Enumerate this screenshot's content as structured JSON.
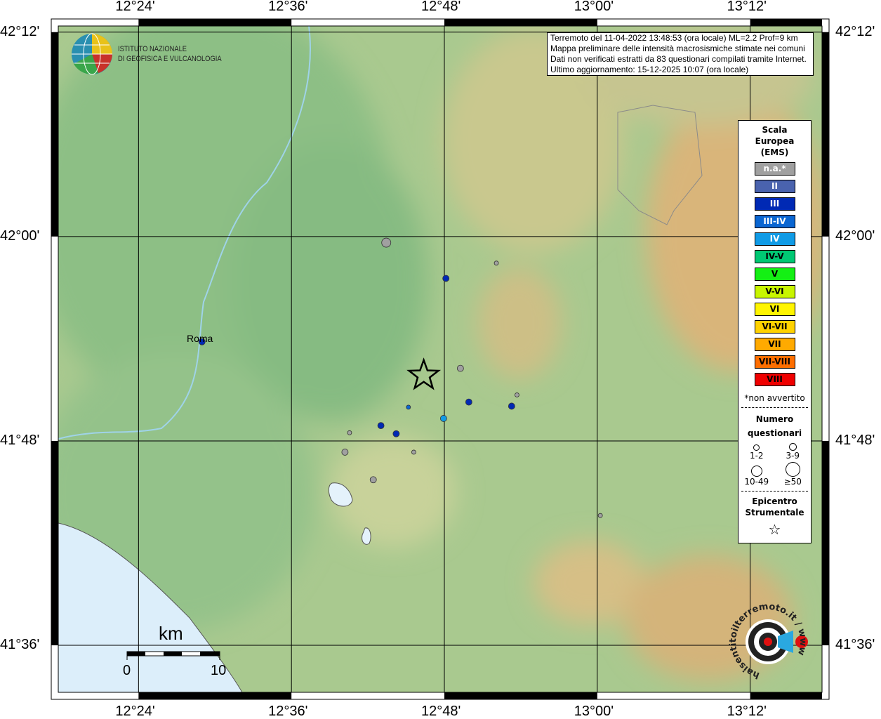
{
  "map": {
    "lon_range": [
      12.295,
      13.294
    ],
    "lat_range": [
      41.554,
      42.206
    ],
    "lon_ticks": [
      "12°24'",
      "12°36'",
      "12°48'",
      "13°00'",
      "13°12'"
    ],
    "lat_ticks": [
      "42°12'",
      "42°00'",
      "41°48'",
      "41°36'"
    ],
    "city_label": "Roma",
    "colors": {
      "terrain_low": "#8fc08a",
      "terrain_mid": "#b9cf96",
      "terrain_high": "#d8b77a",
      "sea": "#dceefa",
      "lake": "#e4f2fb"
    }
  },
  "info": {
    "line1": "Terremoto del 11-04-2022 13:48:53 (ora locale) ML=2.2 Prof=9 km",
    "line2": "Mappa preliminare delle intensità macrosismiche stimate nei comuni",
    "line3": "Dati non verificati estratti da 83 questionari compilati tramite Internet.",
    "line4": "Ultimo aggiornamento: 15-12-2025 10:07 (ora locale)"
  },
  "logo": {
    "line1": "ISTITUTO NAZIONALE",
    "line2": "DI GEOFISICA E VULCANOLOGIA"
  },
  "badge": {
    "text": "haisentitoilterremoto.it / www"
  },
  "legend": {
    "title1": "Scala",
    "title2": "Europea",
    "title3": "(EMS)",
    "classes": [
      {
        "label": "n.a.*",
        "color": "#a0a0a0",
        "text": "#fff"
      },
      {
        "label": "II",
        "color": "#4a63ae",
        "text": "#fff"
      },
      {
        "label": "III",
        "color": "#0029b4",
        "text": "#fff"
      },
      {
        "label": "III-IV",
        "color": "#0a66d2",
        "text": "#fff"
      },
      {
        "label": "IV",
        "color": "#109be6",
        "text": "#fff"
      },
      {
        "label": "IV-V",
        "color": "#00c873",
        "text": "#000"
      },
      {
        "label": "V",
        "color": "#14f014",
        "text": "#000"
      },
      {
        "label": "V-VI",
        "color": "#c8f500",
        "text": "#000"
      },
      {
        "label": "VI",
        "color": "#fff500",
        "text": "#000"
      },
      {
        "label": "VI-VII",
        "color": "#ffd200",
        "text": "#000"
      },
      {
        "label": "VII",
        "color": "#ffaa00",
        "text": "#000"
      },
      {
        "label": "VII-VIII",
        "color": "#ff6e00",
        "text": "#000"
      },
      {
        "label": "VIII",
        "color": "#f00000",
        "text": "#000"
      }
    ],
    "na_note": "*non avvertito",
    "count_title1": "Numero",
    "count_title2": "questionari",
    "sizes": [
      "1-2",
      "3-9",
      "10-49",
      "≥50"
    ],
    "epi_title1": "Epicentro",
    "epi_title2": "Strumentale"
  },
  "scalebar": {
    "unit": "km",
    "min": "0",
    "max": "10"
  },
  "epicenter": {
    "lon": 12.773,
    "lat": 41.864
  },
  "points": [
    {
      "lon": 12.724,
      "lat": 41.994,
      "cls": "n.a.*",
      "size": "10-49"
    },
    {
      "lon": 12.868,
      "lat": 41.974,
      "cls": "n.a.*",
      "size": "1-2"
    },
    {
      "lon": 12.802,
      "lat": 41.959,
      "cls": "III",
      "size": "3-9"
    },
    {
      "lon": 12.483,
      "lat": 41.897,
      "cls": "III",
      "size": "3-9"
    },
    {
      "lon": 12.821,
      "lat": 41.871,
      "cls": "n.a.*",
      "size": "3-9"
    },
    {
      "lon": 12.895,
      "lat": 41.845,
      "cls": "n.a.*",
      "size": "1-2"
    },
    {
      "lon": 12.832,
      "lat": 41.838,
      "cls": "III",
      "size": "3-9"
    },
    {
      "lon": 12.888,
      "lat": 41.834,
      "cls": "III",
      "size": "3-9"
    },
    {
      "lon": 12.753,
      "lat": 41.833,
      "cls": "III-IV",
      "size": "1-2"
    },
    {
      "lon": 12.799,
      "lat": 41.822,
      "cls": "IV",
      "size": "3-9"
    },
    {
      "lon": 12.717,
      "lat": 41.815,
      "cls": "III",
      "size": "3-9"
    },
    {
      "lon": 12.737,
      "lat": 41.807,
      "cls": "III",
      "size": "3-9"
    },
    {
      "lon": 12.676,
      "lat": 41.808,
      "cls": "n.a.*",
      "size": "1-2"
    },
    {
      "lon": 12.76,
      "lat": 41.789,
      "cls": "n.a.*",
      "size": "1-2"
    },
    {
      "lon": 12.67,
      "lat": 41.789,
      "cls": "n.a.*",
      "size": "3-9"
    },
    {
      "lon": 12.707,
      "lat": 41.762,
      "cls": "n.a.*",
      "size": "3-9"
    },
    {
      "lon": 13.004,
      "lat": 41.727,
      "cls": "n.a.*",
      "size": "1-2"
    }
  ]
}
